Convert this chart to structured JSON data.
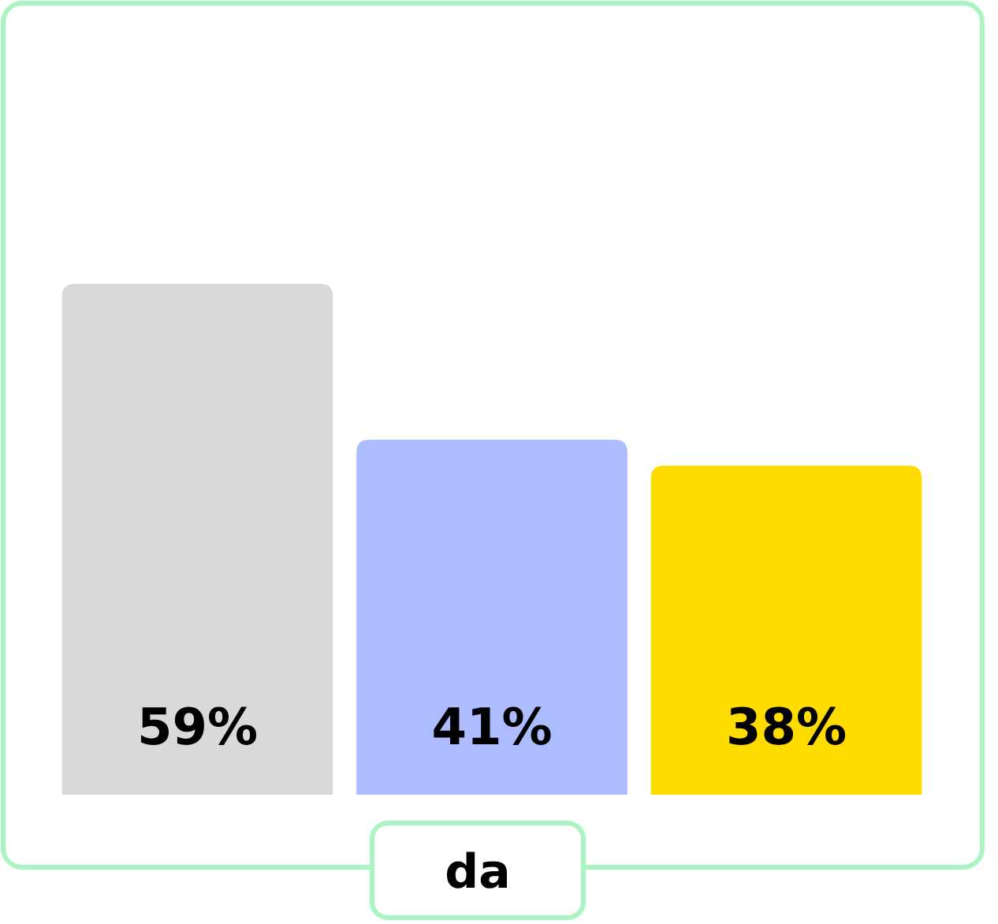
{
  "chart_data": {
    "type": "bar",
    "xlabel": "da",
    "categories": [
      null,
      null,
      null
    ],
    "values": [
      59,
      41,
      38
    ],
    "colors": [
      "#d9d9d9",
      "#adbcff",
      "#ffdc00"
    ],
    "value_labels": [
      "59%",
      "41%",
      "38%"
    ],
    "grid": false
  }
}
